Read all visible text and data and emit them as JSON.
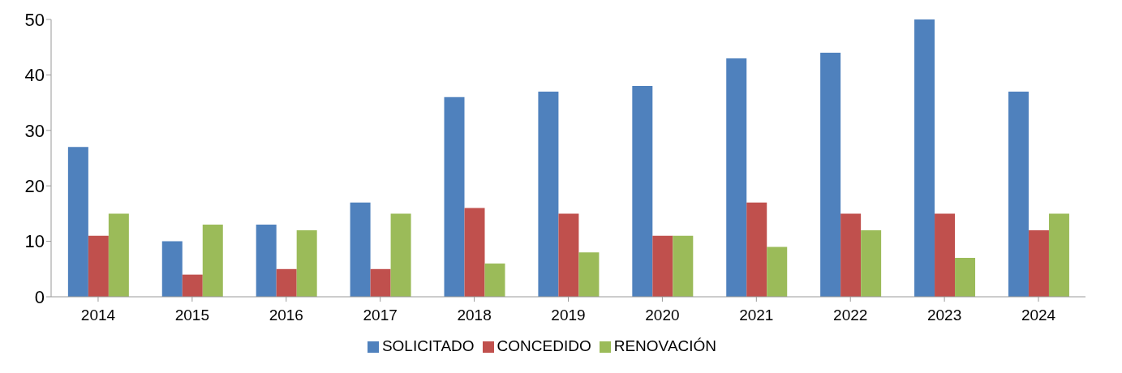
{
  "chart_data": {
    "type": "bar",
    "categories": [
      "2014",
      "2015",
      "2016",
      "2017",
      "2018",
      "2019",
      "2020",
      "2021",
      "2022",
      "2023",
      "2024"
    ],
    "series": [
      {
        "name": "SOLICITADO",
        "color": "#4f81bd",
        "values": [
          27,
          10,
          13,
          17,
          36,
          37,
          38,
          43,
          44,
          50,
          37
        ]
      },
      {
        "name": "CONCEDIDO",
        "color": "#c0504d",
        "values": [
          11,
          4,
          5,
          5,
          16,
          15,
          11,
          17,
          15,
          15,
          12
        ]
      },
      {
        "name": "RENOVACIÓN",
        "color": "#9bbb59",
        "values": [
          15,
          13,
          12,
          15,
          6,
          8,
          11,
          9,
          12,
          7,
          15
        ]
      }
    ],
    "ylim": [
      0,
      50
    ],
    "yticks": [
      0,
      10,
      20,
      30,
      40,
      50
    ],
    "grid": false,
    "legend": "bottom"
  }
}
